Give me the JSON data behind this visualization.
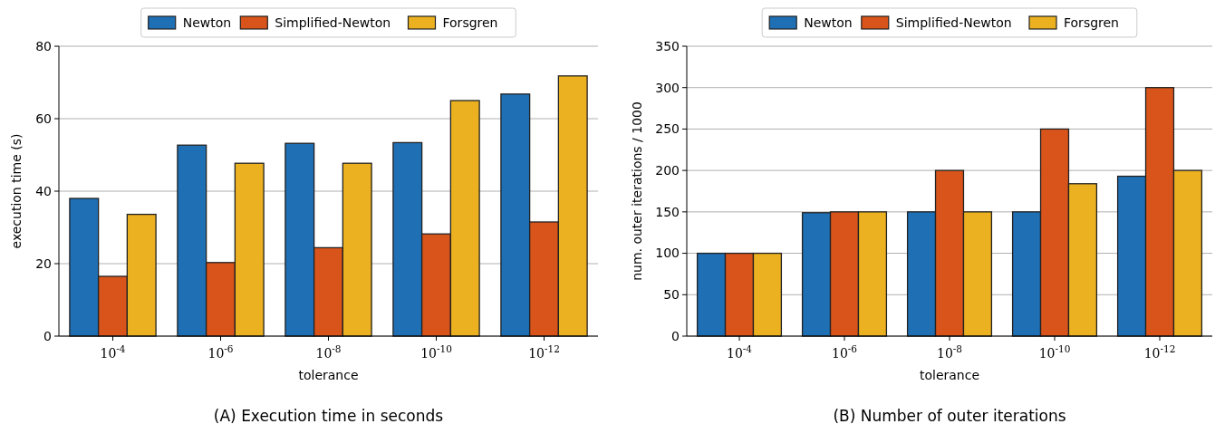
{
  "chart_data": [
    {
      "type": "bar",
      "xlabel": "tolerance",
      "ylabel": "execution time (s)",
      "categories": [
        "10$^{-4}$",
        "10$^{-6}$",
        "10$^{-8}$",
        "10$^{-10}$",
        "10$^{-12}$"
      ],
      "series": [
        {
          "name": "Newton",
          "color": "#1f6fb4",
          "values": [
            38,
            52.7,
            53.2,
            53.4,
            66.8
          ]
        },
        {
          "name": "Simplified-Newton",
          "color": "#d9541a",
          "values": [
            16.5,
            20.3,
            24.4,
            28.2,
            31.5
          ]
        },
        {
          "name": "Forsgren",
          "color": "#ebb120",
          "values": [
            33.6,
            47.7,
            47.7,
            65,
            71.8
          ]
        }
      ],
      "ylim": [
        0,
        80
      ],
      "yticks": [
        0,
        20,
        40,
        60,
        80
      ],
      "grid": "y",
      "legend": "top",
      "annotations": [
        "(A) Execution time in seconds"
      ]
    },
    {
      "type": "bar",
      "xlabel": "tolerance",
      "ylabel": "num. outer iterations / 1000",
      "categories": [
        "10$^{-4}$",
        "10$^{-6}$",
        "10$^{-8}$",
        "10$^{-10}$",
        "10$^{-12}$"
      ],
      "series": [
        {
          "name": "Newton",
          "color": "#1f6fb4",
          "values": [
            100,
            149,
            150,
            150,
            193
          ]
        },
        {
          "name": "Simplified-Newton",
          "color": "#d9541a",
          "values": [
            100,
            150,
            200,
            250,
            300
          ]
        },
        {
          "name": "Forsgren",
          "color": "#ebb120",
          "values": [
            100,
            150,
            150,
            184,
            200
          ]
        }
      ],
      "ylim": [
        0,
        350
      ],
      "yticks": [
        0,
        50,
        100,
        150,
        200,
        250,
        300,
        350
      ],
      "grid": "y",
      "legend": "top",
      "annotations": [
        "(B) Number of outer iterations"
      ]
    }
  ]
}
